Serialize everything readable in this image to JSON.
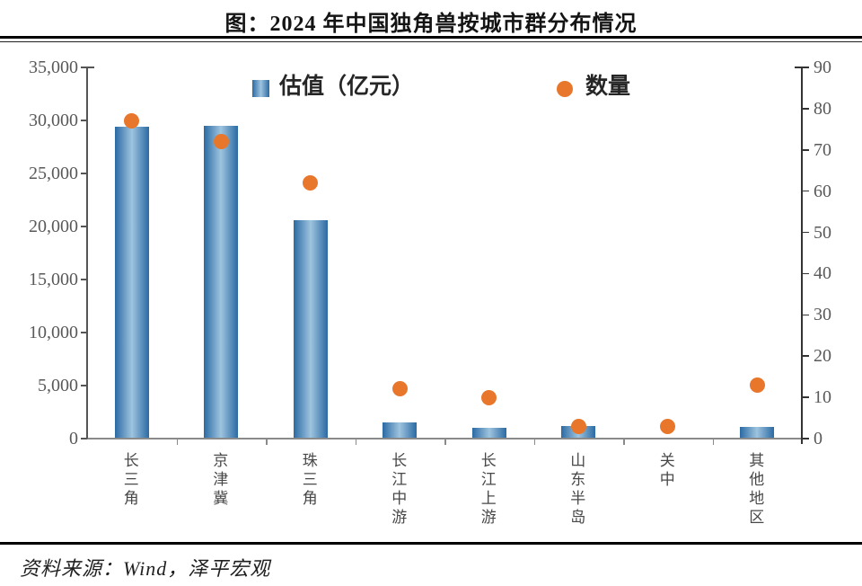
{
  "title": "图：2024 年中国独角兽按城市群分布情况",
  "source": "资料来源：Wind，泽平宏观",
  "colors": {
    "bar_edge": "#2b6aa3",
    "bar_center": "#9ec4df",
    "dot": "#e8772b",
    "axis": "#555555",
    "right_axis": "#333333",
    "baseline": "#8a8a8a",
    "tick_label": "#595959",
    "rule": "#000000"
  },
  "chart_data": {
    "type": "bar",
    "subtype": "combo-bar-scatter-dual-axis",
    "title": "图：2024 年中国独角兽按城市群分布情况",
    "categories": [
      "长三角",
      "京津冀",
      "珠三角",
      "长江中游",
      "长江上游",
      "山东半岛",
      "关中",
      "其他地区"
    ],
    "series": [
      {
        "name": "估值（亿元）",
        "type": "bar",
        "axis": "left",
        "values": [
          29400,
          29500,
          20600,
          1500,
          1000,
          1200,
          0,
          1100
        ]
      },
      {
        "name": "数量",
        "type": "scatter",
        "axis": "right",
        "values": [
          77,
          72,
          62,
          12,
          10,
          3,
          3,
          13
        ]
      }
    ],
    "left_axis": {
      "min": 0,
      "max": 35000,
      "step": 5000,
      "tick_labels": [
        "0",
        "5,000",
        "10,000",
        "15,000",
        "20,000",
        "25,000",
        "30,000",
        "35,000"
      ]
    },
    "right_axis": {
      "min": 0,
      "max": 90,
      "step": 10,
      "tick_labels": [
        "0",
        "10",
        "20",
        "30",
        "40",
        "50",
        "60",
        "70",
        "80",
        "90"
      ]
    },
    "grid": false,
    "legend_position": "top-inside"
  }
}
